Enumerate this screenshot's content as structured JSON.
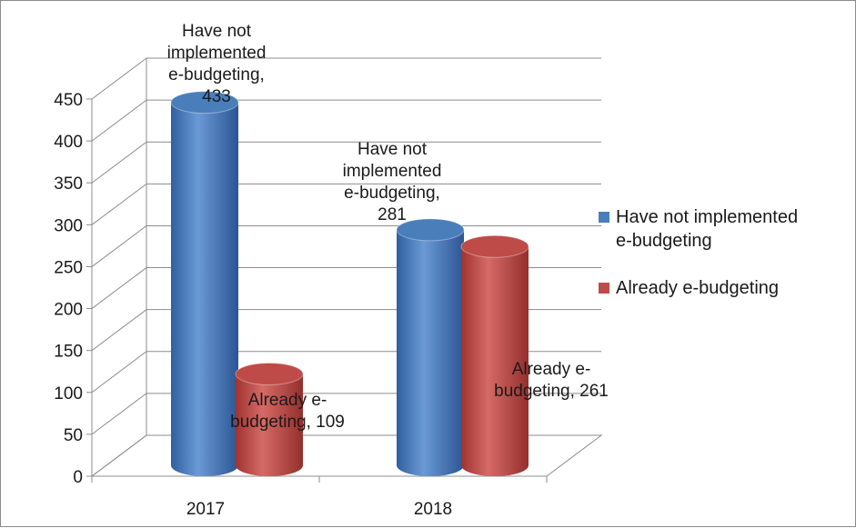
{
  "chart_data": {
    "type": "bar",
    "style": "3d-cylinder",
    "categories": [
      "2017",
      "2018"
    ],
    "series": [
      {
        "name": "Have not implemented e-budgeting",
        "values": [
          433,
          281
        ],
        "color": "#4a7ebb"
      },
      {
        "name": "Already e-budgeting",
        "values": [
          109,
          261
        ],
        "color": "#be4b48"
      }
    ],
    "data_labels": [
      [
        "Have not implemented e-budgeting, 433",
        "Already e-budgeting, 109"
      ],
      [
        "Have not implemented e-budgeting, 281",
        "Already e-budgeting, 261"
      ]
    ],
    "title": "",
    "xlabel": "",
    "ylabel": "",
    "ylim": [
      0,
      450
    ],
    "yticks": [
      "0",
      "50",
      "100",
      "150",
      "200",
      "250",
      "300",
      "350",
      "400",
      "450"
    ],
    "grid": true,
    "legend_position": "right"
  }
}
